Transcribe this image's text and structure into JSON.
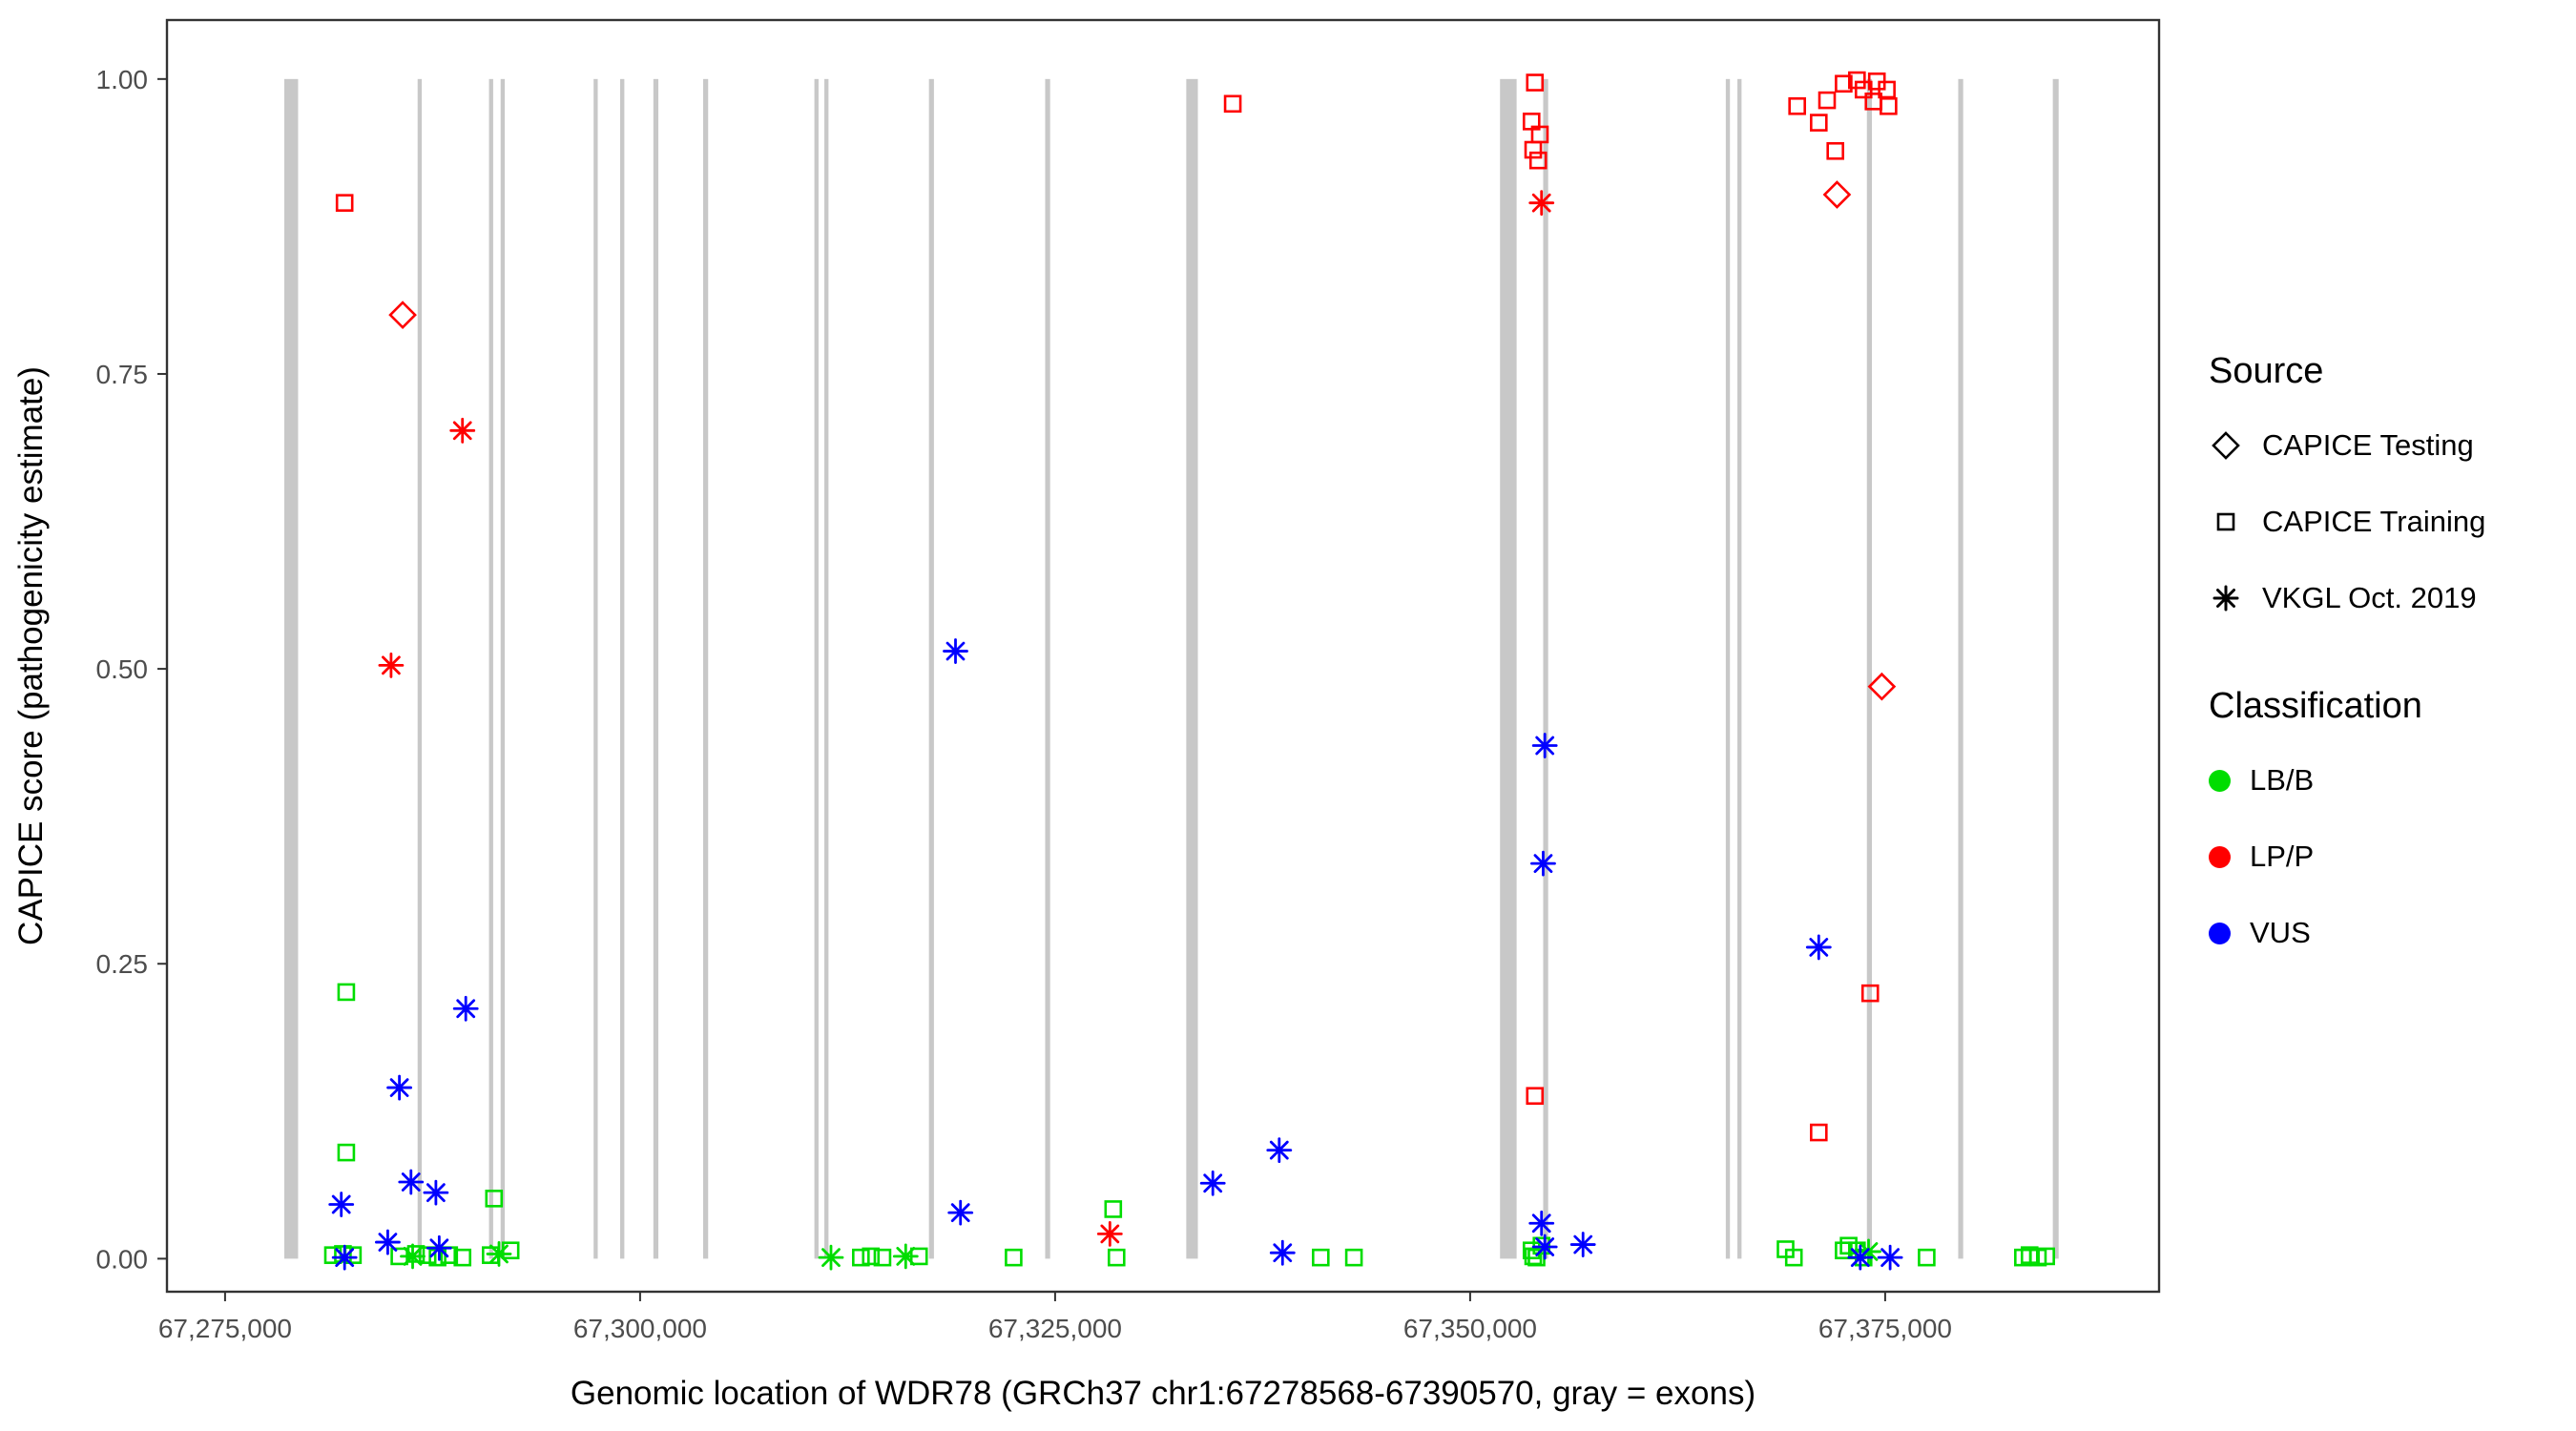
{
  "chart_data": {
    "type": "scatter",
    "title": "",
    "xlabel": "Genomic location of WDR78 (GRCh37 chr1:67278568-67390570, gray = exons)",
    "ylabel": "CAPICE score (pathogenicity estimate)",
    "xlim": [
      67271500,
      67391500
    ],
    "ylim": [
      -0.028,
      1.05
    ],
    "grid": "off",
    "legend_position": "right",
    "x_ticks": [
      {
        "v": 67275000,
        "label": "67,275,000"
      },
      {
        "v": 67300000,
        "label": "67,300,000"
      },
      {
        "v": 67325000,
        "label": "67,325,000"
      },
      {
        "v": 67350000,
        "label": "67,350,000"
      },
      {
        "v": 67375000,
        "label": "67,375,000"
      }
    ],
    "y_ticks": [
      {
        "v": 0.0,
        "label": "0.00"
      },
      {
        "v": 0.25,
        "label": "0.25"
      },
      {
        "v": 0.5,
        "label": "0.50"
      },
      {
        "v": 0.75,
        "label": "0.75"
      },
      {
        "v": 1.0,
        "label": "1.00"
      }
    ],
    "exon_color": "#c8c8c8",
    "exons": [
      [
        67278568,
        67279400
      ],
      [
        67286600,
        67286850
      ],
      [
        67290900,
        67291150
      ],
      [
        67291600,
        67291850
      ],
      [
        67297200,
        67297450
      ],
      [
        67298800,
        67299050
      ],
      [
        67300800,
        67301100
      ],
      [
        67303800,
        67304100
      ],
      [
        67310500,
        67310750
      ],
      [
        67311100,
        67311350
      ],
      [
        67317400,
        67317700
      ],
      [
        67324400,
        67324700
      ],
      [
        67332900,
        67333600
      ],
      [
        67351800,
        67352800
      ],
      [
        67354400,
        67354700
      ],
      [
        67365400,
        67365650
      ],
      [
        67366100,
        67366350
      ],
      [
        67373900,
        67374200
      ],
      [
        67379400,
        67379700
      ],
      [
        67385100,
        67385450
      ]
    ],
    "shape_by_source": {
      "testing": "diamond",
      "training": "square",
      "vkgl": "asterisk"
    },
    "classification_colors": {
      "LB/B": "#00dd00",
      "LP/P": "#ff0000",
      "VUS": "#0000ff"
    },
    "points": [
      {
        "x": 67282300,
        "y": 0.226,
        "s": "training",
        "c": "LB/B"
      },
      {
        "x": 67282300,
        "y": 0.09,
        "s": "training",
        "c": "LB/B"
      },
      {
        "x": 67291200,
        "y": 0.051,
        "s": "training",
        "c": "LB/B"
      },
      {
        "x": 67281500,
        "y": 0.003,
        "s": "training",
        "c": "LB/B"
      },
      {
        "x": 67282100,
        "y": 0.004,
        "s": "training",
        "c": "LB/B"
      },
      {
        "x": 67282700,
        "y": 0.003,
        "s": "training",
        "c": "LB/B"
      },
      {
        "x": 67285500,
        "y": 0.002,
        "s": "training",
        "c": "LB/B"
      },
      {
        "x": 67286500,
        "y": 0.004,
        "s": "training",
        "c": "LB/B"
      },
      {
        "x": 67287200,
        "y": 0.003,
        "s": "training",
        "c": "LB/B"
      },
      {
        "x": 67287800,
        "y": 0.001,
        "s": "training",
        "c": "LB/B"
      },
      {
        "x": 67288500,
        "y": 0.003,
        "s": "training",
        "c": "LB/B"
      },
      {
        "x": 67289300,
        "y": 0.001,
        "s": "training",
        "c": "LB/B"
      },
      {
        "x": 67291000,
        "y": 0.003,
        "s": "training",
        "c": "LB/B"
      },
      {
        "x": 67292200,
        "y": 0.007,
        "s": "training",
        "c": "LB/B"
      },
      {
        "x": 67313300,
        "y": 0.001,
        "s": "training",
        "c": "LB/B"
      },
      {
        "x": 67313900,
        "y": 0.002,
        "s": "training",
        "c": "LB/B"
      },
      {
        "x": 67314600,
        "y": 0.001,
        "s": "training",
        "c": "LB/B"
      },
      {
        "x": 67316800,
        "y": 0.002,
        "s": "training",
        "c": "LB/B"
      },
      {
        "x": 67322500,
        "y": 0.001,
        "s": "training",
        "c": "LB/B"
      },
      {
        "x": 67328500,
        "y": 0.042,
        "s": "training",
        "c": "LB/B"
      },
      {
        "x": 67328700,
        "y": 0.001,
        "s": "training",
        "c": "LB/B"
      },
      {
        "x": 67341000,
        "y": 0.001,
        "s": "training",
        "c": "LB/B"
      },
      {
        "x": 67343000,
        "y": 0.001,
        "s": "training",
        "c": "LB/B"
      },
      {
        "x": 67353700,
        "y": 0.007,
        "s": "training",
        "c": "LB/B"
      },
      {
        "x": 67354000,
        "y": 0.001,
        "s": "training",
        "c": "LB/B"
      },
      {
        "x": 67354300,
        "y": 0.011,
        "s": "training",
        "c": "LB/B"
      },
      {
        "x": 67353800,
        "y": 0.002,
        "s": "training",
        "c": "LB/B"
      },
      {
        "x": 67369000,
        "y": 0.008,
        "s": "training",
        "c": "LB/B"
      },
      {
        "x": 67369500,
        "y": 0.001,
        "s": "training",
        "c": "LB/B"
      },
      {
        "x": 67372500,
        "y": 0.007,
        "s": "training",
        "c": "LB/B"
      },
      {
        "x": 67372800,
        "y": 0.011,
        "s": "training",
        "c": "LB/B"
      },
      {
        "x": 67373300,
        "y": 0.007,
        "s": "training",
        "c": "LB/B"
      },
      {
        "x": 67373700,
        "y": 0.001,
        "s": "training",
        "c": "LB/B"
      },
      {
        "x": 67377500,
        "y": 0.001,
        "s": "training",
        "c": "LB/B"
      },
      {
        "x": 67383300,
        "y": 0.001,
        "s": "training",
        "c": "LB/B"
      },
      {
        "x": 67383700,
        "y": 0.003,
        "s": "training",
        "c": "LB/B"
      },
      {
        "x": 67384200,
        "y": 0.001,
        "s": "training",
        "c": "LB/B"
      },
      {
        "x": 67384700,
        "y": 0.002,
        "s": "training",
        "c": "LB/B"
      },
      {
        "x": 67286300,
        "y": 0.002,
        "s": "vkgl",
        "c": "LB/B"
      },
      {
        "x": 67291500,
        "y": 0.004,
        "s": "vkgl",
        "c": "LB/B"
      },
      {
        "x": 67311500,
        "y": 0.001,
        "s": "vkgl",
        "c": "LB/B"
      },
      {
        "x": 67316000,
        "y": 0.002,
        "s": "vkgl",
        "c": "LB/B"
      },
      {
        "x": 67374000,
        "y": 0.006,
        "s": "vkgl",
        "c": "LB/B"
      },
      {
        "x": 67282000,
        "y": 0.046,
        "s": "vkgl",
        "c": "VUS"
      },
      {
        "x": 67285500,
        "y": 0.145,
        "s": "vkgl",
        "c": "VUS"
      },
      {
        "x": 67286200,
        "y": 0.065,
        "s": "vkgl",
        "c": "VUS"
      },
      {
        "x": 67284800,
        "y": 0.014,
        "s": "vkgl",
        "c": "VUS"
      },
      {
        "x": 67287700,
        "y": 0.056,
        "s": "vkgl",
        "c": "VUS"
      },
      {
        "x": 67287900,
        "y": 0.009,
        "s": "vkgl",
        "c": "VUS"
      },
      {
        "x": 67289500,
        "y": 0.212,
        "s": "vkgl",
        "c": "VUS"
      },
      {
        "x": 67282200,
        "y": 0.001,
        "s": "vkgl",
        "c": "VUS"
      },
      {
        "x": 67319000,
        "y": 0.515,
        "s": "vkgl",
        "c": "VUS"
      },
      {
        "x": 67319300,
        "y": 0.039,
        "s": "vkgl",
        "c": "VUS"
      },
      {
        "x": 67334500,
        "y": 0.064,
        "s": "vkgl",
        "c": "VUS"
      },
      {
        "x": 67338500,
        "y": 0.092,
        "s": "vkgl",
        "c": "VUS"
      },
      {
        "x": 67338700,
        "y": 0.005,
        "s": "vkgl",
        "c": "VUS"
      },
      {
        "x": 67354500,
        "y": 0.435,
        "s": "vkgl",
        "c": "VUS"
      },
      {
        "x": 67354400,
        "y": 0.335,
        "s": "vkgl",
        "c": "VUS"
      },
      {
        "x": 67354300,
        "y": 0.03,
        "s": "vkgl",
        "c": "VUS"
      },
      {
        "x": 67354500,
        "y": 0.01,
        "s": "vkgl",
        "c": "VUS"
      },
      {
        "x": 67356800,
        "y": 0.012,
        "s": "vkgl",
        "c": "VUS"
      },
      {
        "x": 67371000,
        "y": 0.264,
        "s": "vkgl",
        "c": "VUS"
      },
      {
        "x": 67373500,
        "y": 0.001,
        "s": "vkgl",
        "c": "VUS"
      },
      {
        "x": 67375300,
        "y": 0.001,
        "s": "vkgl",
        "c": "VUS"
      },
      {
        "x": 67282200,
        "y": 0.895,
        "s": "training",
        "c": "LP/P"
      },
      {
        "x": 67335700,
        "y": 0.979,
        "s": "training",
        "c": "LP/P"
      },
      {
        "x": 67353900,
        "y": 0.997,
        "s": "training",
        "c": "LP/P"
      },
      {
        "x": 67353700,
        "y": 0.964,
        "s": "training",
        "c": "LP/P"
      },
      {
        "x": 67354200,
        "y": 0.953,
        "s": "training",
        "c": "LP/P"
      },
      {
        "x": 67353800,
        "y": 0.94,
        "s": "training",
        "c": "LP/P"
      },
      {
        "x": 67354100,
        "y": 0.931,
        "s": "training",
        "c": "LP/P"
      },
      {
        "x": 67353900,
        "y": 0.138,
        "s": "training",
        "c": "LP/P"
      },
      {
        "x": 67369700,
        "y": 0.977,
        "s": "training",
        "c": "LP/P"
      },
      {
        "x": 67371500,
        "y": 0.982,
        "s": "training",
        "c": "LP/P"
      },
      {
        "x": 67371000,
        "y": 0.963,
        "s": "training",
        "c": "LP/P"
      },
      {
        "x": 67372500,
        "y": 0.996,
        "s": "training",
        "c": "LP/P"
      },
      {
        "x": 67373300,
        "y": 0.999,
        "s": "training",
        "c": "LP/P"
      },
      {
        "x": 67373700,
        "y": 0.991,
        "s": "training",
        "c": "LP/P"
      },
      {
        "x": 67374500,
        "y": 0.998,
        "s": "training",
        "c": "LP/P"
      },
      {
        "x": 67375100,
        "y": 0.991,
        "s": "training",
        "c": "LP/P"
      },
      {
        "x": 67374300,
        "y": 0.981,
        "s": "training",
        "c": "LP/P"
      },
      {
        "x": 67375200,
        "y": 0.977,
        "s": "training",
        "c": "LP/P"
      },
      {
        "x": 67372000,
        "y": 0.939,
        "s": "training",
        "c": "LP/P"
      },
      {
        "x": 67374100,
        "y": 0.225,
        "s": "training",
        "c": "LP/P"
      },
      {
        "x": 67371000,
        "y": 0.107,
        "s": "training",
        "c": "LP/P"
      },
      {
        "x": 67285700,
        "y": 0.8,
        "s": "testing",
        "c": "LP/P"
      },
      {
        "x": 67372100,
        "y": 0.902,
        "s": "testing",
        "c": "LP/P"
      },
      {
        "x": 67374800,
        "y": 0.485,
        "s": "testing",
        "c": "LP/P"
      },
      {
        "x": 67289300,
        "y": 0.702,
        "s": "vkgl",
        "c": "LP/P"
      },
      {
        "x": 67285000,
        "y": 0.503,
        "s": "vkgl",
        "c": "LP/P"
      },
      {
        "x": 67328300,
        "y": 0.021,
        "s": "vkgl",
        "c": "LP/P"
      },
      {
        "x": 67354300,
        "y": 0.895,
        "s": "vkgl",
        "c": "LP/P"
      }
    ]
  },
  "legend": {
    "source": {
      "title": "Source",
      "items": [
        {
          "label": "CAPICE Testing",
          "shape": "diamond"
        },
        {
          "label": "CAPICE Training",
          "shape": "square"
        },
        {
          "label": "VKGL Oct. 2019",
          "shape": "asterisk"
        }
      ]
    },
    "classification": {
      "title": "Classification",
      "items": [
        {
          "label": "LB/B",
          "color": "#00dd00"
        },
        {
          "label": "LP/P",
          "color": "#ff0000"
        },
        {
          "label": "VUS",
          "color": "#0000ff"
        }
      ]
    }
  }
}
